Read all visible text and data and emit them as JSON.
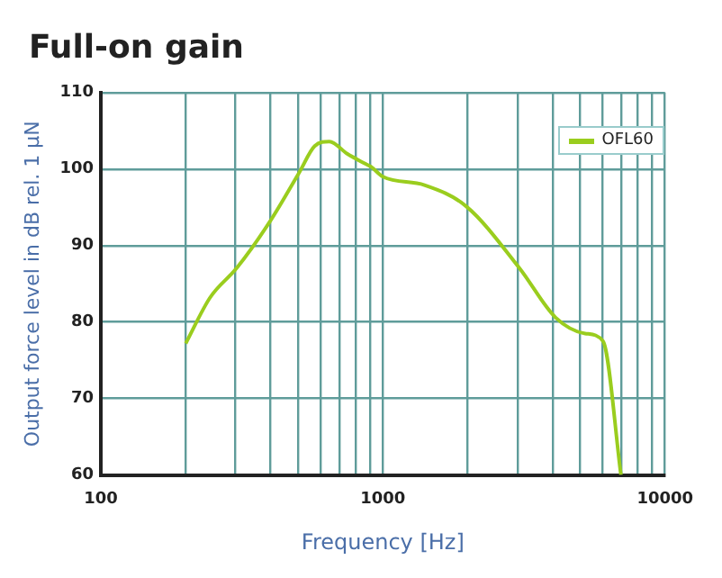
{
  "chart_data": {
    "type": "line",
    "title": "Full-on gain",
    "xlabel": "Frequency [Hz]",
    "ylabel": "Output force level in dB rel. 1 µN",
    "log": "x",
    "grid": true,
    "legend": "top right",
    "marker": "none",
    "line_style": "solid",
    "xlim": [
      100,
      10000
    ],
    "xticks": [
      100,
      {
        "value": 200,
        "label": null
      },
      {
        "value": 300,
        "label": null
      },
      {
        "value": 400,
        "label": null
      },
      {
        "value": 500,
        "label": null
      },
      {
        "value": 600,
        "label": null
      },
      {
        "value": 700,
        "label": null
      },
      {
        "value": 800,
        "label": null
      },
      {
        "value": 900,
        "label": null
      },
      1000,
      {
        "value": 2000,
        "label": null
      },
      {
        "value": 3000,
        "label": null
      },
      {
        "value": 4000,
        "label": null
      },
      {
        "value": 5000,
        "label": null
      },
      {
        "value": 6000,
        "label": null
      },
      {
        "value": 7000,
        "label": null
      },
      {
        "value": 8000,
        "label": null
      },
      {
        "value": 9000,
        "label": null
      },
      10000
    ],
    "ylim": [
      60,
      110
    ],
    "yticks": [
      60,
      70,
      80,
      90,
      100,
      110
    ],
    "series": [
      {
        "name": "OFL60",
        "color": "#9acd1e",
        "x": [
          200,
          244,
          304,
          397,
          506,
          573,
          646,
          747,
          865,
          907,
          1000,
          1404,
          1977,
          3055,
          4090,
          5210,
          6030,
          6980
        ],
        "values": [
          77.2,
          83.2,
          87.1,
          93.1,
          99.6,
          103.0,
          103.6,
          102.0,
          100.7,
          100.3,
          99.0,
          97.9,
          95.1,
          87.0,
          80.6,
          78.5,
          77.5,
          60
        ]
      }
    ]
  }
}
